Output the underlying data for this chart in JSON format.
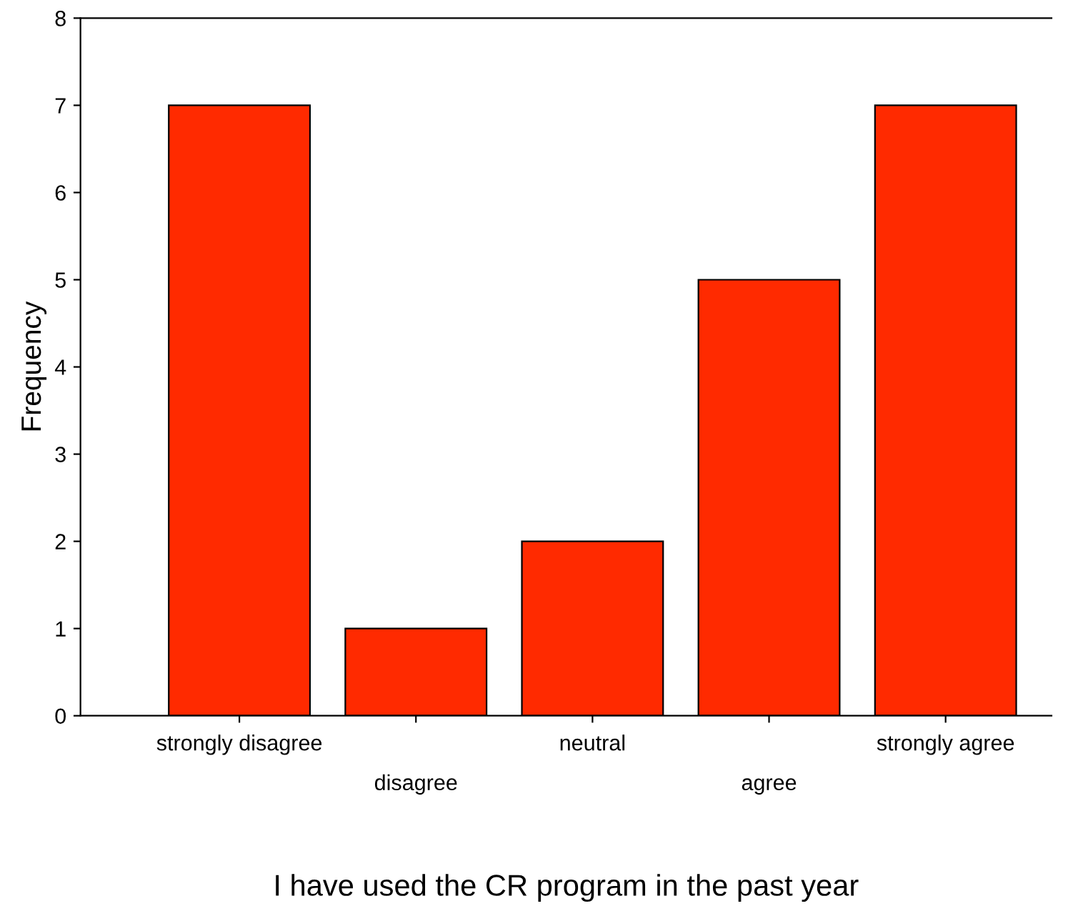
{
  "chart_data": {
    "type": "bar",
    "xlabel": "I have used the CR program in the past year",
    "ylabel": "Frequency",
    "categories": [
      "strongly disagree",
      "disagree",
      "neutral",
      "agree",
      "strongly agree"
    ],
    "values": [
      7,
      1,
      2,
      5,
      7
    ],
    "color": "#ff2a00",
    "ylim": [
      0,
      8
    ],
    "yticks": [
      0,
      1,
      2,
      3,
      4,
      5,
      6,
      7,
      8
    ],
    "grid": false,
    "legend": false
  }
}
